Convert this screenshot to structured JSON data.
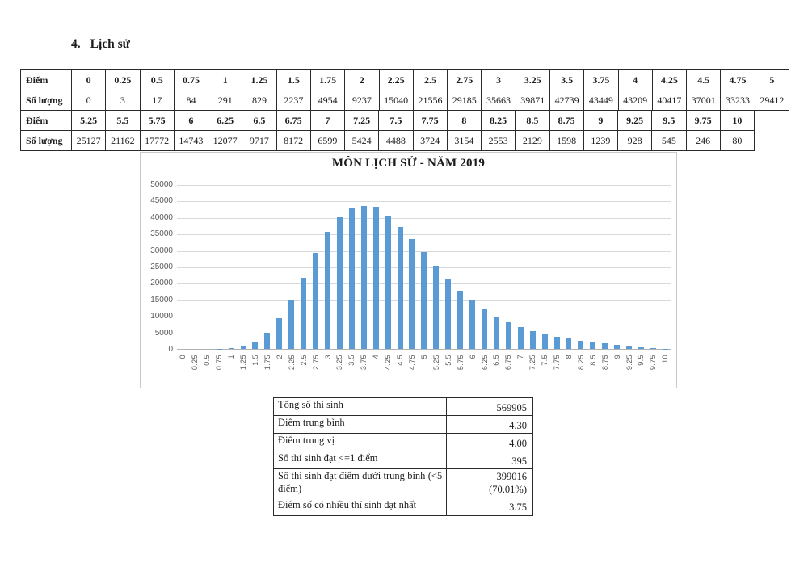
{
  "heading": {
    "number": "4.",
    "title": "Lịch sử"
  },
  "score_table": {
    "row_label_score": "Điểm",
    "row_label_count": "Số lượng",
    "part1": {
      "scores": [
        "0",
        "0.25",
        "0.5",
        "0.75",
        "1",
        "1.25",
        "1.5",
        "1.75",
        "2",
        "2.25",
        "2.5",
        "2.75",
        "3",
        "3.25",
        "3.5",
        "3.75",
        "4",
        "4.25",
        "4.5",
        "4.75",
        "5"
      ],
      "counts": [
        "0",
        "3",
        "17",
        "84",
        "291",
        "829",
        "2237",
        "4954",
        "9237",
        "15040",
        "21556",
        "29185",
        "35663",
        "39871",
        "42739",
        "43449",
        "43209",
        "40417",
        "37001",
        "33233",
        "29412"
      ]
    },
    "part2": {
      "scores": [
        "5.25",
        "5.5",
        "5.75",
        "6",
        "6.25",
        "6.5",
        "6.75",
        "7",
        "7.25",
        "7.5",
        "7.75",
        "8",
        "8.25",
        "8.5",
        "8.75",
        "9",
        "9.25",
        "9.5",
        "9.75",
        "10"
      ],
      "counts": [
        "25127",
        "21162",
        "17772",
        "14743",
        "12077",
        "9717",
        "8172",
        "6599",
        "5424",
        "4488",
        "3724",
        "3154",
        "2553",
        "2129",
        "1598",
        "1239",
        "928",
        "545",
        "246",
        "80"
      ]
    }
  },
  "chart_data": {
    "type": "bar",
    "title": "MÔN LỊCH SỬ - NĂM 2019",
    "xlabel": "",
    "ylabel": "",
    "categories": [
      "0",
      "0.25",
      "0.5",
      "0.75",
      "1",
      "1.25",
      "1.5",
      "1.75",
      "2",
      "2.25",
      "2.5",
      "2.75",
      "3",
      "3.25",
      "3.5",
      "3.75",
      "4",
      "4.25",
      "4.5",
      "4.75",
      "5",
      "5.25",
      "5.5",
      "5.75",
      "6",
      "6.25",
      "6.5",
      "6.75",
      "7",
      "7.25",
      "7.5",
      "7.75",
      "8",
      "8.25",
      "8.5",
      "8.75",
      "9",
      "9.25",
      "9.5",
      "9.75",
      "10"
    ],
    "values": [
      0,
      3,
      17,
      84,
      291,
      829,
      2237,
      4954,
      9237,
      15040,
      21556,
      29185,
      35663,
      39871,
      42739,
      43449,
      43209,
      40417,
      37001,
      33233,
      29412,
      25127,
      21162,
      17772,
      14743,
      12077,
      9717,
      8172,
      6599,
      5424,
      4488,
      3724,
      3154,
      2553,
      2129,
      1598,
      1239,
      928,
      545,
      246,
      80
    ],
    "ylim": [
      0,
      50000
    ],
    "ytick_step": 5000,
    "bar_color": "#5b9bd5",
    "gridline_color": "#d9d9d9",
    "gridlines": true,
    "legend": "none"
  },
  "summary_table": {
    "rows": [
      {
        "label": "Tổng số thí sinh",
        "value": "569905"
      },
      {
        "label": "Điểm trung bình",
        "value": "4.30"
      },
      {
        "label": "Điểm trung vị",
        "value": "4.00"
      },
      {
        "label": "Số thí sinh đạt <=1 điểm",
        "value": "395"
      },
      {
        "label": "Số thí sinh đạt điểm dưới trung bình (<5 điểm)",
        "value": "399016 (70.01%)",
        "value_lines": [
          "399016",
          "(70.01%)"
        ]
      },
      {
        "label": "Điểm số có nhiều thí sinh đạt nhất",
        "value": "3.75"
      }
    ]
  }
}
